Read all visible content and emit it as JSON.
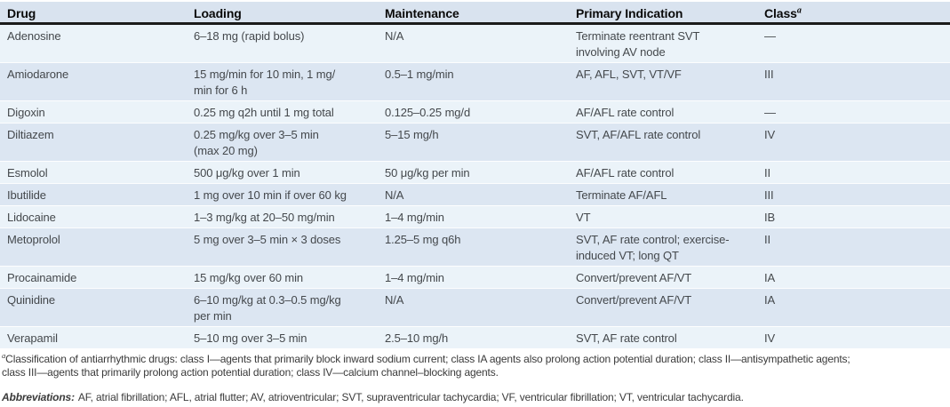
{
  "table": {
    "header": {
      "drug": "Drug",
      "loading": "Loading",
      "maintenance": "Maintenance",
      "indication": "Primary Indication",
      "class_label": "Class",
      "class_superscript": "a"
    },
    "rows": [
      {
        "drug": "Adenosine",
        "loading": "6–18 mg (rapid bolus)",
        "maintenance": "N/A",
        "indication": "Terminate reentrant SVT\ninvolving AV node",
        "class": "—"
      },
      {
        "drug": "Amiodarone",
        "loading": "15 mg/min for 10 min, 1 mg/\nmin for 6 h",
        "maintenance": "0.5–1 mg/min",
        "indication": "AF, AFL, SVT, VT/VF",
        "class": "III"
      },
      {
        "drug": "Digoxin",
        "loading": "0.25 mg q2h until 1 mg total",
        "maintenance": "0.125–0.25 mg/d",
        "indication": "AF/AFL rate control",
        "class": "—"
      },
      {
        "drug": "Diltiazem",
        "loading": "0.25 mg/kg over 3–5 min\n(max 20 mg)",
        "maintenance": "5–15 mg/h",
        "indication": "SVT, AF/AFL rate control",
        "class": "IV"
      },
      {
        "drug": "Esmolol",
        "loading": "500 μg/kg over 1 min",
        "maintenance": "50 μg/kg per min",
        "indication": "AF/AFL rate control",
        "class": "II"
      },
      {
        "drug": "Ibutilide",
        "loading": "1 mg over 10 min if over 60 kg",
        "maintenance": "N/A",
        "indication": "Terminate AF/AFL",
        "class": "III"
      },
      {
        "drug": "Lidocaine",
        "loading": "1–3 mg/kg at 20–50 mg/min",
        "maintenance": "1–4 mg/min",
        "indication": "VT",
        "class": "IB"
      },
      {
        "drug": "Metoprolol",
        "loading": "5 mg over 3–5 min × 3 doses",
        "maintenance": "1.25–5 mg q6h",
        "indication": "SVT, AF rate control; exercise-\ninduced VT; long QT",
        "class": "II"
      },
      {
        "drug": "Procainamide",
        "loading": "15 mg/kg over 60 min",
        "maintenance": "1–4 mg/min",
        "indication": "Convert/prevent AF/VT",
        "class": "IA"
      },
      {
        "drug": "Quinidine",
        "loading": "6–10 mg/kg at 0.3–0.5 mg/kg\nper min",
        "maintenance": "N/A",
        "indication": "Convert/prevent AF/VT",
        "class": "IA"
      },
      {
        "drug": "Verapamil",
        "loading": "5–10 mg over 3–5 min",
        "maintenance": "2.5–10 mg/h",
        "indication": "SVT, AF rate control",
        "class": "IV"
      }
    ]
  },
  "footnotes": {
    "classification": {
      "marker": "a",
      "text": "Classification of antiarrhythmic drugs: class I—agents that primarily block inward sodium current; class IA agents also prolong action potential duration; class II—antisympathetic agents;\nclass III—agents that primarily prolong action potential duration; class IV—calcium channel–blocking agents."
    },
    "abbreviations": {
      "label": "Abbreviations:",
      "text": "AF, atrial fibrillation; AFL, atrial flutter; AV, atrioventricular; SVT, supraventricular tachycardia; VF, ventricular fibrillation; VT, ventricular tachycardia."
    }
  },
  "colors": {
    "header_bg": "#d9e3ef",
    "row_odd_bg": "#ebf3f9",
    "row_even_bg": "#dce6f2",
    "rule_color": "#1b1b1b",
    "header_text": "#0a0a0a",
    "body_text": "#44484c",
    "footnote_text": "#3a3a3a"
  }
}
